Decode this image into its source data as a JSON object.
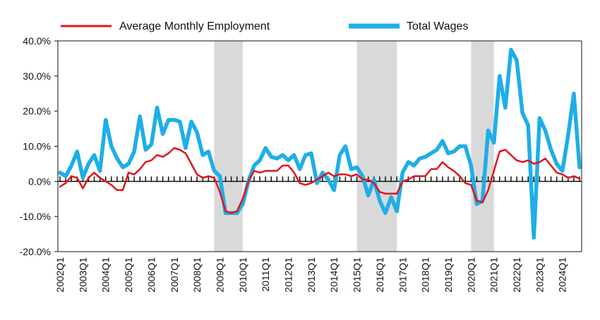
{
  "chart_data": {
    "type": "line",
    "title": "",
    "xlabel": "",
    "ylabel": "",
    "x_start": "2002Q1",
    "x_tick_labels": [
      "2002Q1",
      "2003Q1",
      "2004Q1",
      "2005Q1",
      "2006Q1",
      "2007Q1",
      "2008Q1",
      "2009Q1",
      "2010Q1",
      "2011Q1",
      "2012Q1",
      "2013Q1",
      "2014Q1",
      "2015Q1",
      "2016Q1",
      "2017Q1",
      "2018Q1",
      "2019Q1",
      "2020Q1",
      "2021Q1",
      "2022Q1",
      "2023Q1",
      "2024Q1"
    ],
    "y_tick_labels": [
      "40.0%",
      "30.0%",
      "20.0%",
      "10.0%",
      "0.0%",
      "-10.0%",
      "-20.0%"
    ],
    "ylim": [
      -20,
      40
    ],
    "y_ticks": [
      40,
      30,
      20,
      10,
      0,
      -10,
      -20
    ],
    "legend_position": "top",
    "recession_shading": [
      {
        "start": "2008Q4",
        "end": "2010Q1"
      },
      {
        "start": "2015Q1",
        "end": "2016Q4"
      },
      {
        "start": "2020Q1",
        "end": "2021Q1"
      }
    ],
    "series": [
      {
        "name": "Average Monthly Employment",
        "color": "#e3141b",
        "values": [
          -1.5,
          -0.5,
          1.5,
          1.0,
          -2.0,
          1.0,
          2.5,
          1.0,
          0.0,
          -1.0,
          -2.5,
          -2.5,
          2.5,
          2.0,
          3.5,
          5.5,
          6.0,
          7.5,
          7.0,
          8.0,
          9.5,
          9.0,
          8.0,
          5.0,
          2.0,
          1.0,
          1.5,
          1.0,
          -3.0,
          -8.5,
          -9.0,
          -8.5,
          -5.0,
          0.0,
          3.0,
          2.5,
          3.0,
          3.0,
          3.0,
          4.5,
          4.5,
          2.5,
          -0.5,
          -1.0,
          -0.5,
          0.5,
          1.5,
          2.5,
          1.5,
          2.0,
          2.0,
          1.5,
          2.0,
          0.5,
          0.5,
          -0.5,
          -3.0,
          -3.5,
          -3.5,
          -3.5,
          0.0,
          0.5,
          1.5,
          1.5,
          1.5,
          3.5,
          3.5,
          5.5,
          4.0,
          3.0,
          1.5,
          -0.5,
          -1.0,
          -5.5,
          -6.0,
          -2.5,
          3.0,
          8.5,
          9.0,
          7.5,
          6.0,
          5.5,
          6.0,
          5.0,
          5.5,
          6.5,
          4.5,
          2.5,
          2.0,
          1.0,
          1.5,
          0.8
        ]
      },
      {
        "name": "Total Wages",
        "color": "#1eaee8",
        "values": [
          2.5,
          1.5,
          4.5,
          8.5,
          1.0,
          5.0,
          7.5,
          3.0,
          17.5,
          10.0,
          6.5,
          4.0,
          5.0,
          8.5,
          18.5,
          9.0,
          10.5,
          21.0,
          13.5,
          17.5,
          17.5,
          17.0,
          9.5,
          17.0,
          14.0,
          7.5,
          8.5,
          3.0,
          1.5,
          -9.0,
          -9.0,
          -9.0,
          -6.5,
          0.0,
          4.5,
          6.0,
          9.5,
          7.0,
          6.5,
          7.5,
          6.0,
          7.5,
          3.5,
          7.5,
          8.0,
          -0.5,
          2.5,
          0.5,
          -2.5,
          7.5,
          10.0,
          3.5,
          4.0,
          1.5,
          -4.0,
          0.5,
          -5.5,
          -9.0,
          -4.5,
          -8.5,
          2.5,
          5.5,
          4.5,
          6.5,
          7.0,
          8.0,
          9.0,
          11.5,
          8.0,
          8.5,
          10.0,
          10.0,
          4.5,
          -6.5,
          -5.5,
          14.5,
          11.0,
          30.0,
          21.0,
          37.5,
          34.5,
          19.5,
          16.0,
          -16.0,
          18.0,
          14.5,
          9.0,
          5.0,
          3.0,
          13.0,
          25.0,
          4.0
        ]
      }
    ]
  }
}
